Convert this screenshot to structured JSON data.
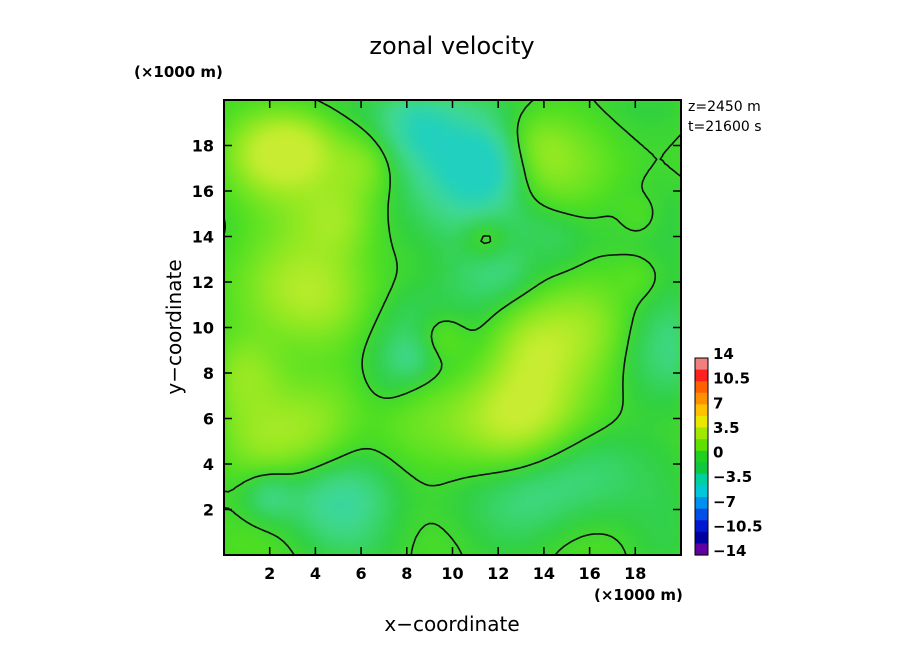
{
  "chart_data": {
    "type": "heatmap",
    "title": "zonal velocity",
    "xlabel": "x−coordinate",
    "ylabel": "y−coordinate",
    "x_unit": "(×1000 m)",
    "y_unit": "(×1000 m)",
    "xlim": [
      0,
      20
    ],
    "ylim": [
      0,
      20
    ],
    "x_ticks": [
      2,
      4,
      6,
      8,
      10,
      12,
      14,
      16,
      18
    ],
    "y_ticks": [
      2,
      4,
      6,
      8,
      10,
      12,
      14,
      16,
      18
    ],
    "x_tick_labels": [
      "2",
      "4",
      "6",
      "8",
      "10",
      "12",
      "14",
      "16",
      "18"
    ],
    "y_tick_labels": [
      "2",
      "4",
      "6",
      "8",
      "10",
      "12",
      "14",
      "16",
      "18"
    ],
    "annotations": [
      "z=2450 m",
      "t=21600 s"
    ],
    "contour_level": 0,
    "value_range": [
      -3.5,
      3.5
    ],
    "colorbar": {
      "levels": [
        14,
        12.25,
        10.5,
        8.75,
        7,
        5.25,
        3.5,
        1.75,
        0,
        -1.75,
        -3.5,
        -5.25,
        -7,
        -8.75,
        -10.5,
        -12.25,
        -14
      ],
      "colors": [
        "#f08080",
        "#ff2020",
        "#ff6000",
        "#ff9000",
        "#ffc000",
        "#e8e800",
        "#a0e800",
        "#60e000",
        "#20d020",
        "#10c840",
        "#00d0a0",
        "#00c8d8",
        "#0090f0",
        "#0050e8",
        "#0018d0",
        "#0000a0",
        "#6000a0"
      ],
      "tick_labels": [
        "14",
        "10.5",
        "7",
        "3.5",
        "0",
        "−3.5",
        "−7",
        "−10.5",
        "−14"
      ]
    }
  }
}
